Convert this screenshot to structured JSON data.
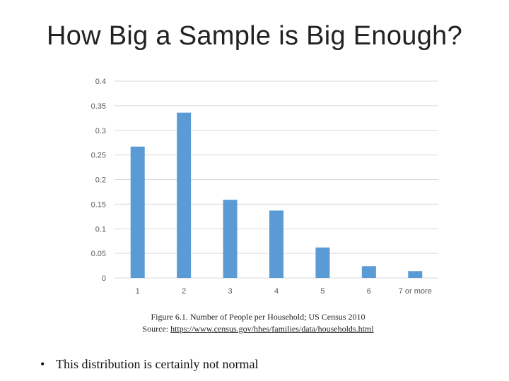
{
  "title": "How Big a Sample is Big Enough?",
  "chart_data": {
    "type": "bar",
    "categories": [
      "1",
      "2",
      "3",
      "4",
      "5",
      "6",
      "7 or more"
    ],
    "values": [
      0.267,
      0.336,
      0.159,
      0.137,
      0.062,
      0.024,
      0.014
    ],
    "y_ticks": [
      "0",
      "0.05",
      "0.1",
      "0.15",
      "0.2",
      "0.25",
      "0.3",
      "0.35",
      "0.4"
    ],
    "ylim": [
      0,
      0.4
    ],
    "grid": true,
    "bar_color": "#5b9bd5",
    "grid_color": "#d9d9d9",
    "tick_label_color": "#595959"
  },
  "caption": {
    "line1": "Figure 6.1. Number of People per Household; US Census 2010",
    "source_prefix": "Source:",
    "source_link": "https://www.census.gov/hhes/families/data/households.html"
  },
  "bullet": {
    "symbol": "•",
    "text": "This distribution is certainly not normal"
  }
}
